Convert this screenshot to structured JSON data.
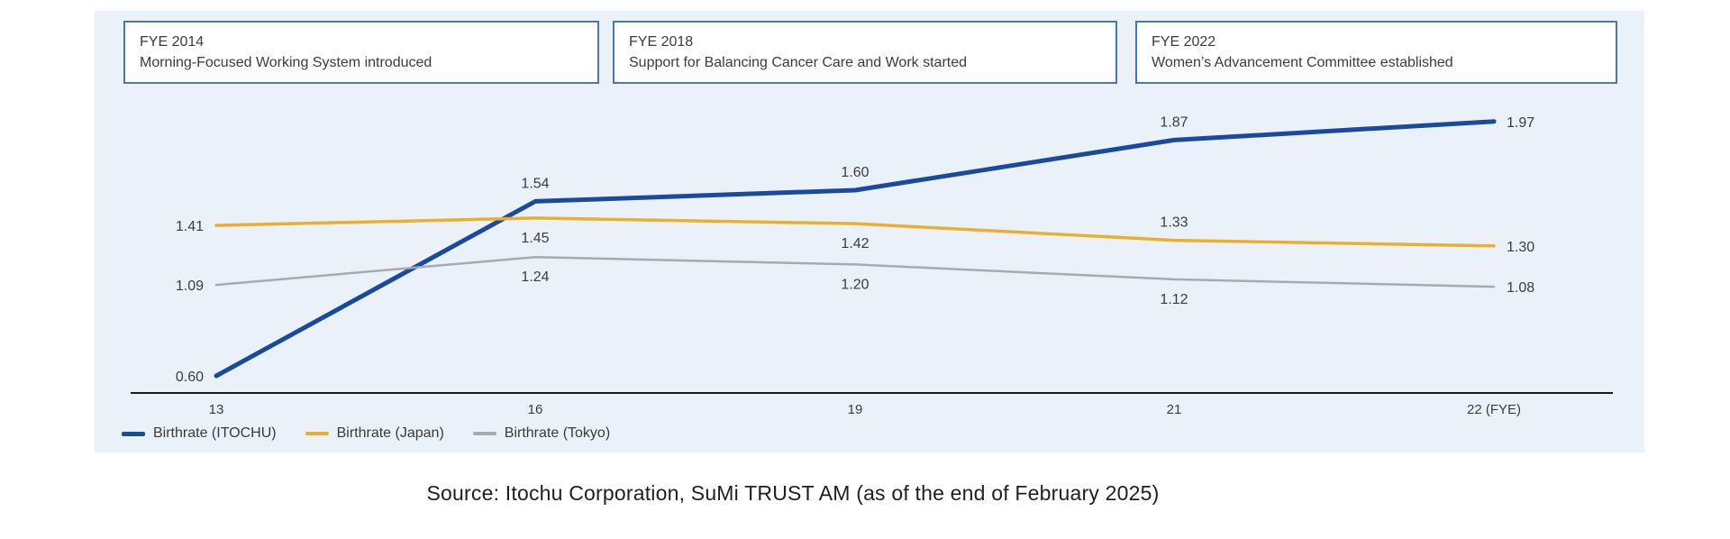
{
  "annotations": [
    {
      "year": "FYE 2014",
      "event": "Morning-Focused Working System introduced"
    },
    {
      "year": "FYE 2018",
      "event": "Support for Balancing Cancer Care and Work started"
    },
    {
      "year": "FYE 2022",
      "event": "Women’s Advancement Committee established"
    }
  ],
  "chart_data": {
    "type": "line",
    "categories": [
      "13",
      "16",
      "19",
      "21",
      "22 (FYE)"
    ],
    "series": [
      {
        "name": "Birthrate (ITOCHU)",
        "color": "#1a4a9d",
        "values": [
          0.6,
          1.54,
          1.6,
          1.87,
          1.97
        ]
      },
      {
        "name": "Birthrate (Japan)",
        "color": "#e9af2d",
        "values": [
          1.41,
          1.45,
          1.42,
          1.33,
          1.3
        ]
      },
      {
        "name": "Birthrate (Tokyo)",
        "color": "#a7abad",
        "values": [
          1.09,
          1.24,
          1.2,
          1.12,
          1.08
        ]
      }
    ],
    "ylim": [
      0.5,
      2.1
    ],
    "grid": false,
    "legend_position": "bottom-left",
    "value_labels": true,
    "axis_color": "#1b1b1b"
  },
  "source": "Source: Itochu Corporation, SuMi TRUST AM (as of the end of February 2025)"
}
